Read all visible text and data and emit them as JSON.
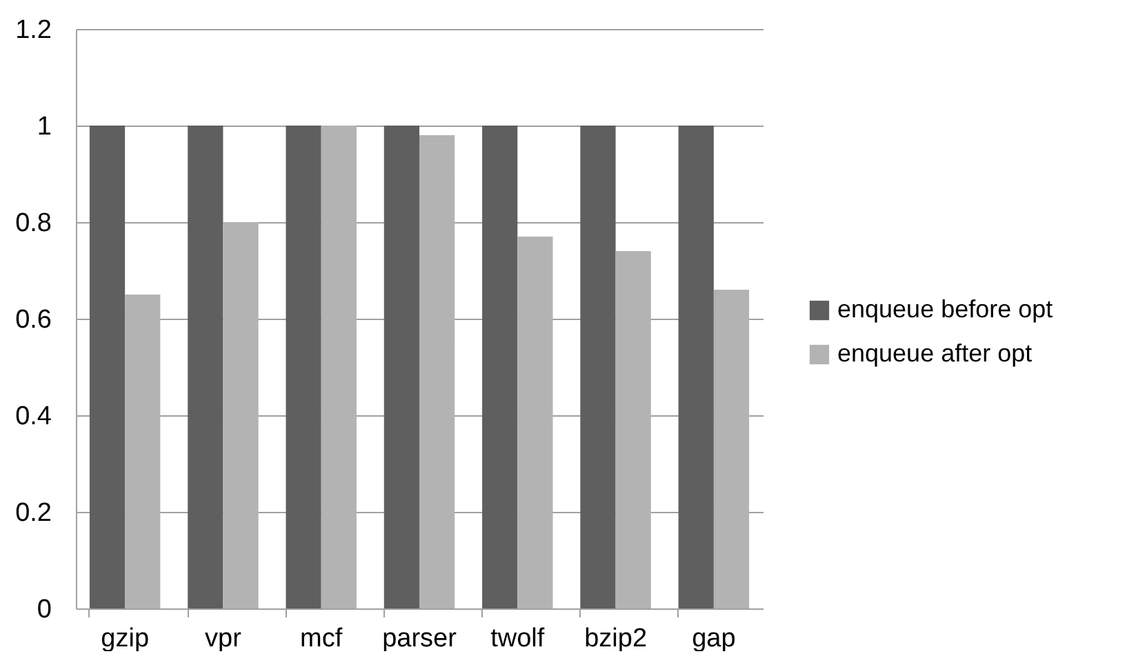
{
  "chart_data": {
    "type": "bar",
    "categories": [
      "gzip",
      "vpr",
      "mcf",
      "parser",
      "twolf",
      "bzip2",
      "gap"
    ],
    "series": [
      {
        "name": "enqueue before opt",
        "color": "#5f5f5f",
        "values": [
          1,
          1,
          1,
          1,
          1,
          1,
          1
        ]
      },
      {
        "name": "enqueue after opt",
        "color": "#b3b3b3",
        "values": [
          0.65,
          0.8,
          1.0,
          0.98,
          0.77,
          0.74,
          0.66
        ]
      }
    ],
    "ylim": [
      0,
      1.2
    ],
    "yticks": [
      0,
      0.2,
      0.4,
      0.6,
      0.8,
      1,
      1.2
    ],
    "grid": "y",
    "legend": "right"
  }
}
